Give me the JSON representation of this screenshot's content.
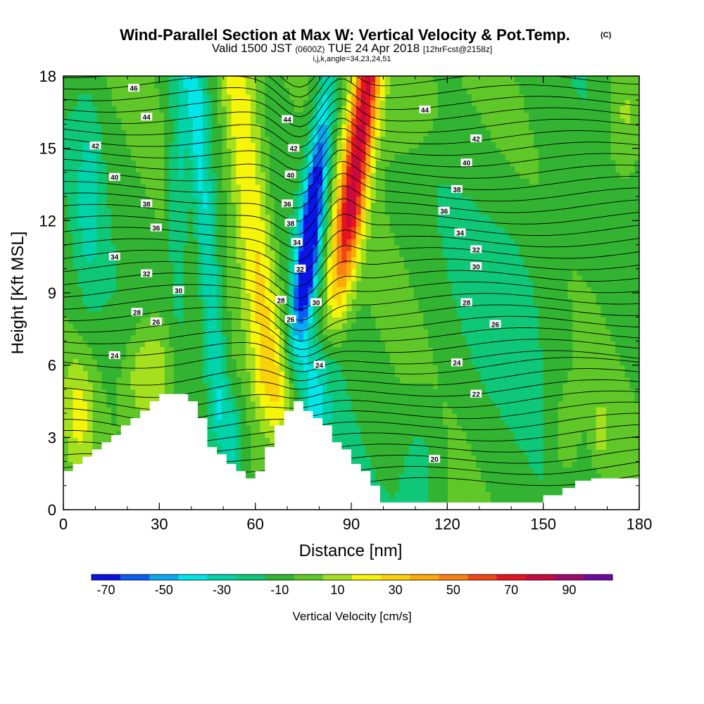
{
  "title": {
    "main": "Wind-Parallel Section at Max W: Vertical Velocity & Pot.Temp.",
    "copyright": "(C)",
    "valid_prefix": "Valid 1500 JST",
    "valid_zulu": "(0600Z)",
    "valid_date": "TUE 24 Apr 2018",
    "forecast": "[12hrFcst@2158z]",
    "indices": "i,j,k,angle=34,23,24,51"
  },
  "chart_data": {
    "type": "contour_cross_section",
    "xlabel": "Distance [nm]",
    "ylabel": "Height [Kft MSL]",
    "xlim": [
      0,
      180
    ],
    "ylim": [
      0,
      18
    ],
    "xticks": [
      "0",
      "30",
      "60",
      "90",
      "120",
      "150",
      "180"
    ],
    "yticks": [
      "0",
      "3",
      "6",
      "9",
      "12",
      "15",
      "18"
    ],
    "colorbar": {
      "label": "Vertical Velocity [cm/s]",
      "ticks": [
        "-70",
        "-50",
        "-30",
        "-10",
        "10",
        "30",
        "50",
        "70",
        "90"
      ],
      "levels": [
        -70,
        -60,
        -50,
        -40,
        -30,
        -20,
        -10,
        0,
        10,
        20,
        30,
        40,
        50,
        60,
        70,
        80,
        90,
        100
      ],
      "colors": [
        "#0a14e6",
        "#0b5cf0",
        "#0aa8f0",
        "#00e6e6",
        "#00d2aa",
        "#0ec878",
        "#32b432",
        "#5fc828",
        "#a5e01e",
        "#f5f50a",
        "#fad20a",
        "#faaa0a",
        "#fa8214",
        "#f04614",
        "#e6141e",
        "#c80a3c",
        "#a00a6e",
        "#6e0aa0"
      ]
    },
    "shading": [
      {
        "name": "background",
        "w_range": [
          -10,
          0
        ]
      },
      {
        "name": "updraft-main",
        "w_range": [
          70,
          80
        ],
        "x_center": 85,
        "height_range": [
          9,
          18
        ]
      },
      {
        "name": "downdraft-main",
        "w_range": [
          -70,
          -60
        ],
        "x_center": 75,
        "height_range": [
          8,
          15
        ]
      },
      {
        "name": "updraft-secondary",
        "w_range": [
          20,
          40
        ],
        "x_center": 62,
        "height_range": [
          3,
          18
        ]
      },
      {
        "name": "updraft-low",
        "w_range": [
          20,
          30
        ],
        "x_center": 28,
        "height_range": [
          3,
          8
        ]
      }
    ],
    "theta_contour_labels": [
      {
        "value": "46",
        "x": 22,
        "y": 17.5
      },
      {
        "value": "44",
        "x": 26,
        "y": 16.3
      },
      {
        "value": "42",
        "x": 10,
        "y": 15.1
      },
      {
        "value": "40",
        "x": 16,
        "y": 13.8
      },
      {
        "value": "38",
        "x": 26,
        "y": 12.7
      },
      {
        "value": "36",
        "x": 29,
        "y": 11.7
      },
      {
        "value": "34",
        "x": 16,
        "y": 10.5
      },
      {
        "value": "32",
        "x": 26,
        "y": 9.8
      },
      {
        "value": "30",
        "x": 36,
        "y": 9.1
      },
      {
        "value": "28",
        "x": 23,
        "y": 8.2
      },
      {
        "value": "26",
        "x": 29,
        "y": 7.8
      },
      {
        "value": "24",
        "x": 16,
        "y": 6.4
      },
      {
        "value": "44",
        "x": 70,
        "y": 16.2
      },
      {
        "value": "42",
        "x": 72,
        "y": 15.0
      },
      {
        "value": "40",
        "x": 71,
        "y": 13.9
      },
      {
        "value": "36",
        "x": 70,
        "y": 12.7
      },
      {
        "value": "38",
        "x": 71,
        "y": 11.9
      },
      {
        "value": "34",
        "x": 73,
        "y": 11.1
      },
      {
        "value": "32",
        "x": 74,
        "y": 10.0
      },
      {
        "value": "28",
        "x": 68,
        "y": 8.7
      },
      {
        "value": "30",
        "x": 79,
        "y": 8.6
      },
      {
        "value": "26",
        "x": 71,
        "y": 7.9
      },
      {
        "value": "24",
        "x": 80,
        "y": 6.0
      },
      {
        "value": "44",
        "x": 113,
        "y": 16.6
      },
      {
        "value": "42",
        "x": 129,
        "y": 15.4
      },
      {
        "value": "40",
        "x": 126,
        "y": 14.4
      },
      {
        "value": "38",
        "x": 123,
        "y": 13.3
      },
      {
        "value": "36",
        "x": 119,
        "y": 12.4
      },
      {
        "value": "34",
        "x": 124,
        "y": 11.5
      },
      {
        "value": "32",
        "x": 129,
        "y": 10.8
      },
      {
        "value": "30",
        "x": 129,
        "y": 10.1
      },
      {
        "value": "28",
        "x": 126,
        "y": 8.6
      },
      {
        "value": "26",
        "x": 135,
        "y": 7.7
      },
      {
        "value": "24",
        "x": 123,
        "y": 6.1
      },
      {
        "value": "22",
        "x": 129,
        "y": 4.8
      },
      {
        "value": "20",
        "x": 116,
        "y": 2.1
      }
    ],
    "terrain_kft": [
      [
        0,
        1.6
      ],
      [
        3,
        1.6
      ],
      [
        3,
        1.9
      ],
      [
        6,
        1.9
      ],
      [
        6,
        2.2
      ],
      [
        9,
        2.2
      ],
      [
        9,
        2.5
      ],
      [
        12,
        2.5
      ],
      [
        12,
        2.8
      ],
      [
        15,
        2.8
      ],
      [
        15,
        3.1
      ],
      [
        18,
        3.1
      ],
      [
        18,
        3.5
      ],
      [
        21,
        3.5
      ],
      [
        21,
        3.8
      ],
      [
        24,
        3.8
      ],
      [
        24,
        4.1
      ],
      [
        27,
        4.1
      ],
      [
        27,
        4.5
      ],
      [
        30,
        4.5
      ],
      [
        30,
        4.8
      ],
      [
        39,
        4.8
      ],
      [
        39,
        4.5
      ],
      [
        42,
        4.5
      ],
      [
        42,
        3.8
      ],
      [
        45,
        3.8
      ],
      [
        45,
        2.6
      ],
      [
        48,
        2.6
      ],
      [
        48,
        2.3
      ],
      [
        51,
        2.3
      ],
      [
        51,
        1.9
      ],
      [
        54,
        1.9
      ],
      [
        54,
        1.6
      ],
      [
        57,
        1.6
      ],
      [
        57,
        1.3
      ],
      [
        60,
        1.3
      ],
      [
        60,
        1.6
      ],
      [
        63,
        1.6
      ],
      [
        63,
        2.6
      ],
      [
        66,
        2.6
      ],
      [
        66,
        3.5
      ],
      [
        69,
        3.5
      ],
      [
        69,
        4.1
      ],
      [
        72,
        4.1
      ],
      [
        72,
        4.5
      ],
      [
        75,
        4.5
      ],
      [
        75,
        4.1
      ],
      [
        78,
        4.1
      ],
      [
        78,
        3.8
      ],
      [
        81,
        3.8
      ],
      [
        81,
        3.5
      ],
      [
        84,
        3.5
      ],
      [
        84,
        2.8
      ],
      [
        87,
        2.8
      ],
      [
        87,
        2.5
      ],
      [
        90,
        2.5
      ],
      [
        90,
        1.9
      ],
      [
        93,
        1.9
      ],
      [
        93,
        1.6
      ],
      [
        96,
        1.6
      ],
      [
        96,
        1.0
      ],
      [
        99,
        1.0
      ],
      [
        99,
        0.3
      ],
      [
        150,
        0.3
      ],
      [
        150,
        0.6
      ],
      [
        156,
        0.6
      ],
      [
        156,
        0.9
      ],
      [
        160,
        0.9
      ],
      [
        160,
        1.2
      ],
      [
        165,
        1.2
      ],
      [
        165,
        1.3
      ],
      [
        180,
        1.3
      ]
    ]
  }
}
